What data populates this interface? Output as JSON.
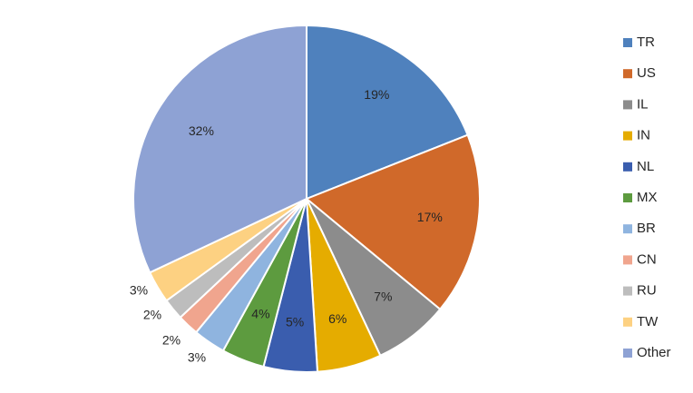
{
  "chart_data": {
    "type": "pie",
    "title": "",
    "start_angle_deg": 0,
    "direction": "clockwise",
    "legend_position": "right",
    "slices": [
      {
        "label": "TR",
        "value": 19,
        "value_label": "19%",
        "color": "#4F81BD"
      },
      {
        "label": "US",
        "value": 17,
        "value_label": "17%",
        "color": "#D0692A"
      },
      {
        "label": "IL",
        "value": 7,
        "value_label": "7%",
        "color": "#8C8C8C"
      },
      {
        "label": "IN",
        "value": 6,
        "value_label": "6%",
        "color": "#E5AC00"
      },
      {
        "label": "NL",
        "value": 5,
        "value_label": "5%",
        "color": "#3A5DAE"
      },
      {
        "label": "MX",
        "value": 4,
        "value_label": "4%",
        "color": "#5D9B3F"
      },
      {
        "label": "BR",
        "value": 3,
        "value_label": "3%",
        "color": "#8FB4DF"
      },
      {
        "label": "CN",
        "value": 2,
        "value_label": "2%",
        "color": "#F0A58E"
      },
      {
        "label": "RU",
        "value": 2,
        "value_label": "2%",
        "color": "#BDBDBD"
      },
      {
        "label": "TW",
        "value": 3,
        "value_label": "3%",
        "color": "#FDD182"
      },
      {
        "label": "Other",
        "value": 32,
        "value_label": "32%",
        "color": "#8EA2D4"
      }
    ]
  }
}
